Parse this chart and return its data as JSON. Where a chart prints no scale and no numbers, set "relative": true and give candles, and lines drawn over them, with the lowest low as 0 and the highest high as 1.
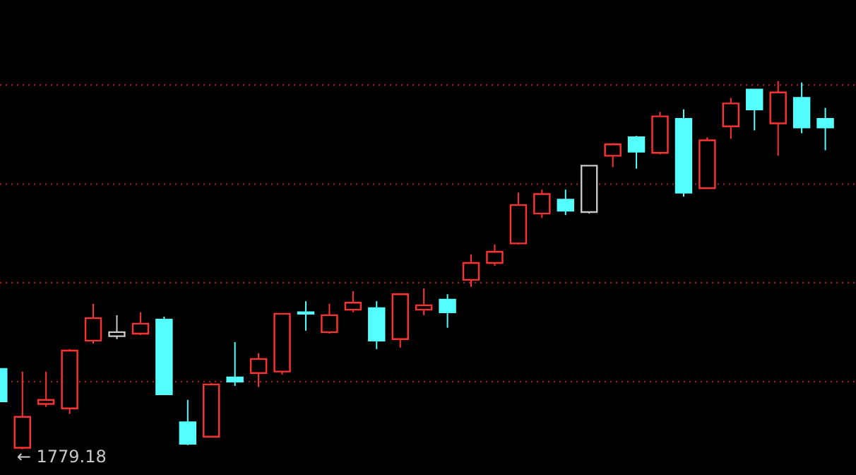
{
  "chart_data": {
    "type": "candlestick",
    "relative": true,
    "categories": [
      null,
      null,
      null,
      null,
      null,
      null,
      null,
      null,
      null,
      null,
      null,
      null,
      null,
      null,
      null,
      null,
      null,
      null,
      null,
      null,
      null,
      null,
      null,
      null,
      null,
      null,
      null,
      null,
      null,
      null,
      null,
      null,
      null,
      null,
      null,
      null
    ],
    "ohlc": [
      [
        0.218,
        0.218,
        0.13,
        0.13
      ],
      [
        0.004,
        0.211,
        0,
        0.088
      ],
      [
        0.123,
        0.211,
        0.115,
        0.134
      ],
      [
        0.111,
        0.272,
        0.096,
        0.268
      ],
      [
        0.295,
        0.395,
        0.287,
        0.356
      ],
      [
        0.307,
        0.364,
        0.299,
        0.318
      ],
      [
        0.314,
        0.372,
        0.31,
        0.341
      ],
      [
        0.352,
        0.36,
        0.149,
        0.149
      ],
      [
        0.073,
        0.134,
        0.011,
        0.015
      ],
      [
        0.034,
        0.18,
        0.034,
        0.176
      ],
      [
        0.195,
        0.291,
        0.172,
        0.184
      ],
      [
        0.207,
        0.261,
        0.169,
        0.245
      ],
      [
        0.211,
        0.368,
        0.203,
        0.368
      ],
      [
        0.372,
        0.402,
        0.322,
        0.368
      ],
      [
        0.318,
        0.395,
        0.314,
        0.364
      ],
      [
        0.379,
        0.429,
        0.372,
        0.398
      ],
      [
        0.383,
        0.402,
        0.272,
        0.295
      ],
      [
        0.299,
        0.421,
        0.276,
        0.421
      ],
      [
        0.379,
        0.437,
        0.364,
        0.391
      ],
      [
        0.406,
        0.421,
        0.33,
        0.372
      ],
      [
        0.46,
        0.529,
        0.441,
        0.506
      ],
      [
        0.506,
        0.556,
        0.498,
        0.536
      ],
      [
        0.559,
        0.697,
        0.556,
        0.663
      ],
      [
        0.64,
        0.705,
        0.628,
        0.693
      ],
      [
        0.678,
        0.705,
        0.636,
        0.648
      ],
      [
        0.644,
        0.77,
        0.64,
        0.77
      ],
      [
        0.797,
        0.831,
        0.766,
        0.828
      ],
      [
        0.847,
        0.851,
        0.762,
        0.808
      ],
      [
        0.805,
        0.916,
        0.801,
        0.904
      ],
      [
        0.897,
        0.923,
        0.686,
        0.697
      ],
      [
        0.709,
        0.847,
        0.709,
        0.839
      ],
      [
        0.877,
        0.954,
        0.843,
        0.939
      ],
      [
        0.977,
        0.977,
        0.866,
        0.923
      ],
      [
        0.885,
        1,
        0.797,
        0.969
      ],
      [
        0.954,
        0.996,
        0.858,
        0.874
      ],
      [
        0.897,
        0.927,
        0.812,
        0.874
      ]
    ],
    "colors": [
      "#54ffff",
      "#ff3232",
      "#ff3232",
      "#ff3232",
      "#ff3232",
      "#c8c8c8",
      "#ff3232",
      "#54ffff",
      "#54ffff",
      "#ff3232",
      "#54ffff",
      "#ff3232",
      "#ff3232",
      "#54ffff",
      "#ff3232",
      "#ff3232",
      "#54ffff",
      "#ff3232",
      "#ff3232",
      "#54ffff",
      "#ff3232",
      "#ff3232",
      "#ff3232",
      "#ff3232",
      "#54ffff",
      "#c8c8c8",
      "#ff3232",
      "#54ffff",
      "#ff3232",
      "#54ffff",
      "#ff3232",
      "#ff3232",
      "#54ffff",
      "#ff3232",
      "#54ffff",
      "#54ffff"
    ],
    "ref_lines": [
      {
        "axis": "y",
        "value": 0.989,
        "color": "#b02020",
        "line_style": "dotted"
      },
      {
        "axis": "y",
        "value": 0.72,
        "color": "#b02020",
        "line_style": "dotted"
      },
      {
        "axis": "y",
        "value": 0.452,
        "color": "#b02020",
        "line_style": "dotted"
      },
      {
        "axis": "y",
        "value": 0.184,
        "color": "#b02020",
        "line_style": "dotted"
      }
    ],
    "annotations": [
      "← 1779.18"
    ]
  }
}
